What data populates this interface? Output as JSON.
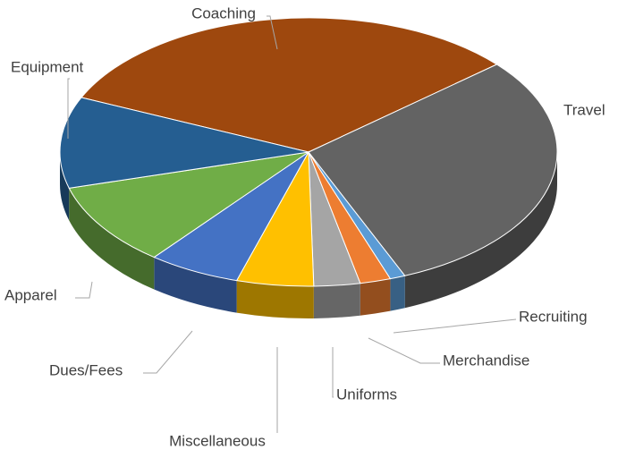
{
  "chart_data": {
    "type": "pie3d",
    "categories": [
      "Coaching",
      "Travel",
      "Recruiting",
      "Merchandise",
      "Uniforms",
      "Miscellaneous",
      "Dues/Fees",
      "Apparel",
      "Equipment"
    ],
    "values": [
      32,
      30,
      1,
      2,
      3,
      5,
      6,
      10,
      11
    ],
    "colors": [
      "#9e480e",
      "#636363",
      "#5b9bd5",
      "#ed7d31",
      "#a5a5a5",
      "#ffc000",
      "#4472c4",
      "#70ad47",
      "#255e91"
    ]
  }
}
